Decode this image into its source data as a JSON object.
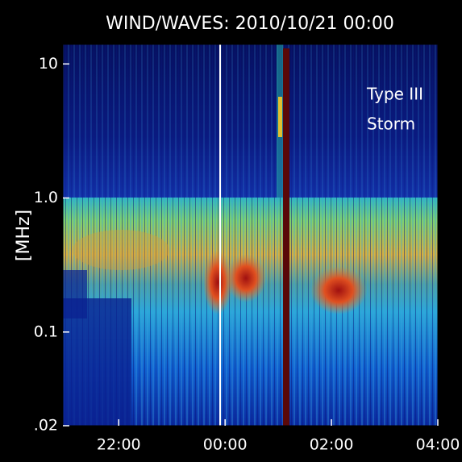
{
  "chart_data": {
    "type": "spectrogram",
    "title": "WIND/WAVES: 2010/10/21 00:00",
    "y_label": "[MHz]",
    "annotation_lines": [
      "Type III",
      "Storm"
    ],
    "log_y": true,
    "ylim": [
      0.02,
      14
    ],
    "yticks": [
      10,
      {
        "value": 1,
        "label": "1.0"
      },
      0.1,
      {
        "value": 0.02,
        "label": ".02"
      }
    ],
    "xlim": [
      -3.05,
      4
    ],
    "xticks": [
      {
        "value": -2,
        "label": "22:00"
      },
      {
        "value": 0,
        "label": "00:00"
      },
      {
        "value": 2,
        "label": "02:00"
      },
      {
        "value": 4,
        "label": "04:00"
      }
    ]
  }
}
